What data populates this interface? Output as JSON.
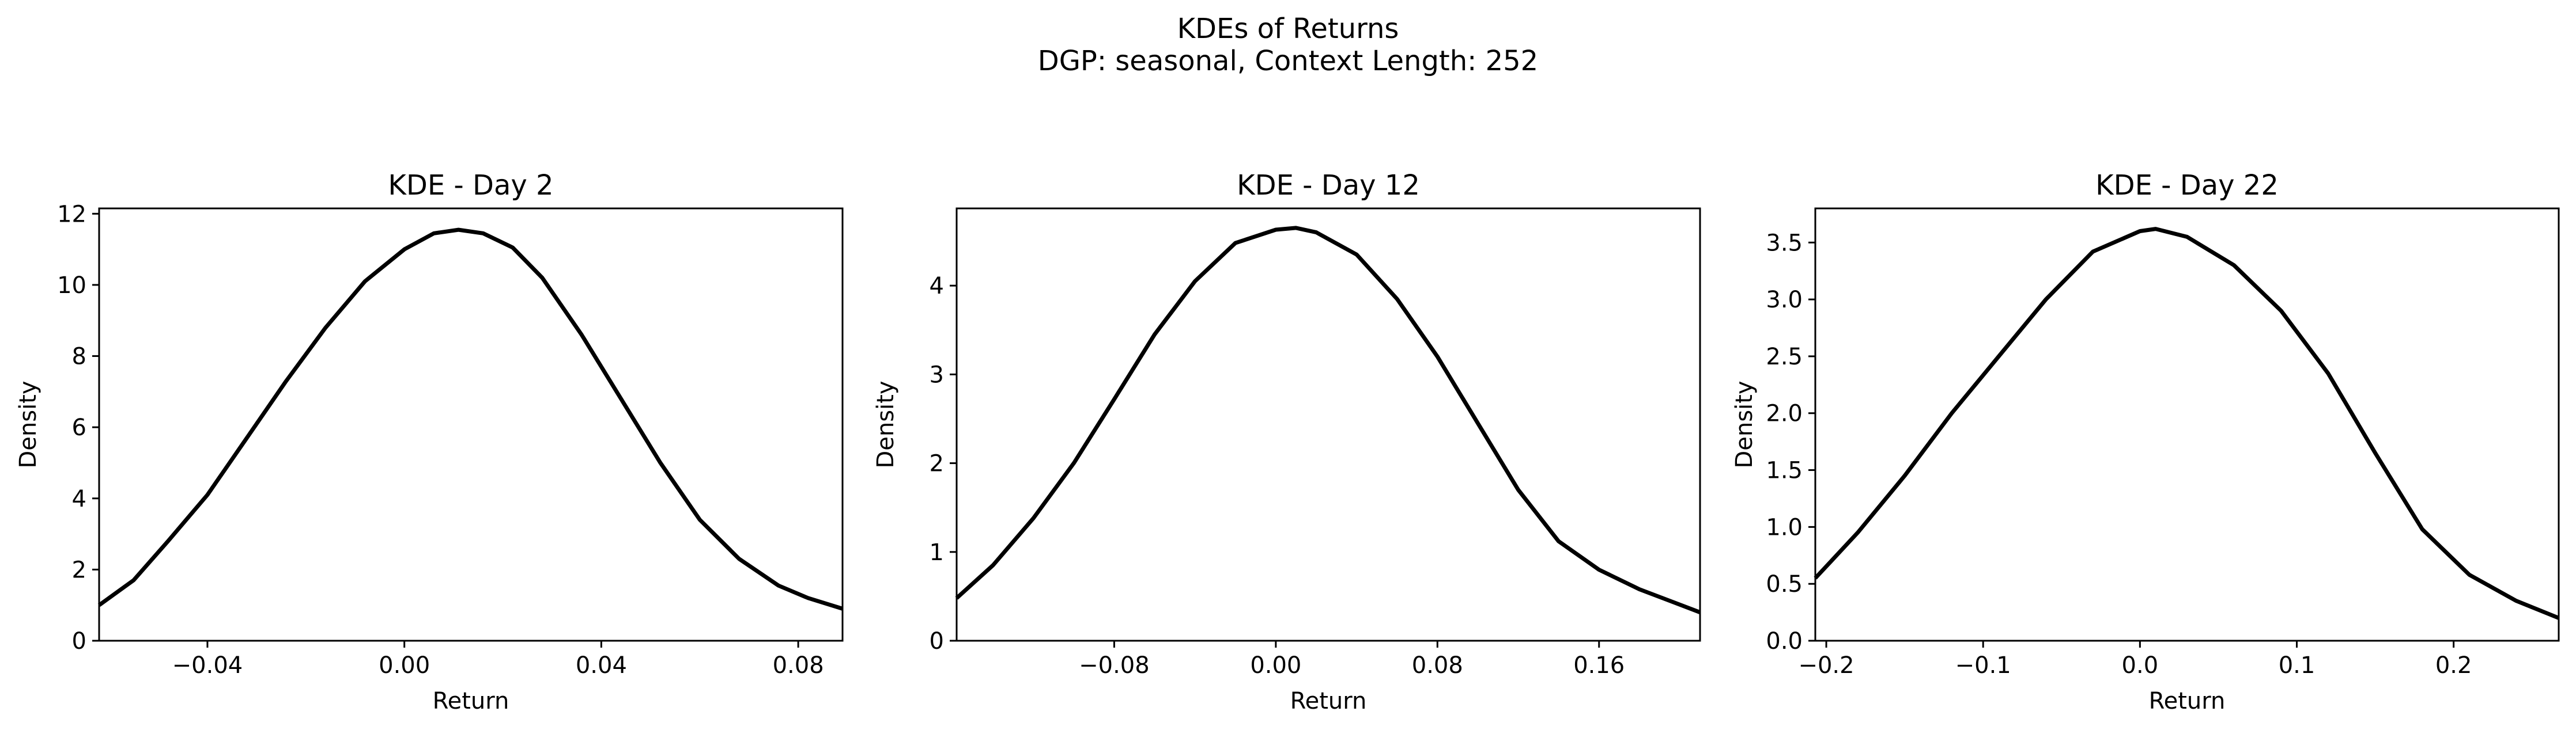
{
  "figure": {
    "title": "KDEs of Returns",
    "subtitle": "DGP: seasonal, Context Length: 252"
  },
  "colors": {
    "line": "#000000",
    "axes": "#000000",
    "background": "#ffffff"
  },
  "chart_data": [
    {
      "type": "line",
      "title": "KDE - Day 2",
      "xlabel": "Return",
      "ylabel": "Density",
      "xlim": [
        -0.062,
        0.089
      ],
      "ylim": [
        0,
        12.15
      ],
      "xticks": [
        -0.04,
        0.0,
        0.04,
        0.08
      ],
      "xtick_labels": [
        "−0.04",
        "0.00",
        "0.04",
        "0.08"
      ],
      "yticks": [
        0,
        2,
        4,
        6,
        8,
        10,
        12
      ],
      "ytick_labels": [
        "0",
        "2",
        "4",
        "6",
        "8",
        "10",
        "12"
      ],
      "grid": false,
      "legend": "none",
      "series": [
        {
          "x": [
            -0.062,
            -0.055,
            -0.048,
            -0.04,
            -0.032,
            -0.024,
            -0.016,
            -0.008,
            0.0,
            0.006,
            0.011,
            0.016,
            0.022,
            0.028,
            0.036,
            0.044,
            0.052,
            0.06,
            0.068,
            0.076,
            0.082,
            0.089
          ],
          "y": [
            1.0,
            1.7,
            2.8,
            4.1,
            5.7,
            7.3,
            8.8,
            10.1,
            11.0,
            11.45,
            11.55,
            11.45,
            11.05,
            10.2,
            8.6,
            6.8,
            5.0,
            3.4,
            2.3,
            1.55,
            1.2,
            0.9
          ]
        }
      ]
    },
    {
      "type": "line",
      "title": "KDE - Day 12",
      "xlabel": "Return",
      "ylabel": "Density",
      "xlim": [
        -0.158,
        0.21
      ],
      "ylim": [
        0,
        4.87
      ],
      "xticks": [
        -0.08,
        0.0,
        0.08,
        0.16
      ],
      "xtick_labels": [
        "−0.08",
        "0.00",
        "0.08",
        "0.16"
      ],
      "yticks": [
        0,
        1,
        2,
        3,
        4
      ],
      "ytick_labels": [
        "0",
        "1",
        "2",
        "3",
        "4"
      ],
      "grid": false,
      "legend": "none",
      "series": [
        {
          "x": [
            -0.158,
            -0.14,
            -0.12,
            -0.1,
            -0.08,
            -0.06,
            -0.04,
            -0.02,
            0.0,
            0.01,
            0.02,
            0.04,
            0.06,
            0.08,
            0.1,
            0.12,
            0.14,
            0.16,
            0.18,
            0.195,
            0.21
          ],
          "y": [
            0.48,
            0.85,
            1.38,
            2.0,
            2.72,
            3.45,
            4.05,
            4.48,
            4.63,
            4.65,
            4.6,
            4.35,
            3.85,
            3.2,
            2.45,
            1.7,
            1.12,
            0.8,
            0.58,
            0.45,
            0.32
          ]
        }
      ]
    },
    {
      "type": "line",
      "title": "KDE - Day 22",
      "xlabel": "Return",
      "ylabel": "Density",
      "xlim": [
        -0.207,
        0.267
      ],
      "ylim": [
        0,
        3.8
      ],
      "xticks": [
        -0.2,
        -0.1,
        0.0,
        0.1,
        0.2
      ],
      "xtick_labels": [
        "−0.2",
        "−0.1",
        "0.0",
        "0.1",
        "0.2"
      ],
      "yticks": [
        0.0,
        0.5,
        1.0,
        1.5,
        2.0,
        2.5,
        3.0,
        3.5
      ],
      "ytick_labels": [
        "0.0",
        "0.5",
        "1.0",
        "1.5",
        "2.0",
        "2.5",
        "3.0",
        "3.5"
      ],
      "grid": false,
      "legend": "none",
      "series": [
        {
          "x": [
            -0.207,
            -0.18,
            -0.15,
            -0.12,
            -0.09,
            -0.06,
            -0.03,
            0.0,
            0.01,
            0.03,
            0.06,
            0.09,
            0.12,
            0.15,
            0.18,
            0.21,
            0.24,
            0.267
          ],
          "y": [
            0.55,
            0.95,
            1.45,
            2.0,
            2.5,
            3.0,
            3.42,
            3.6,
            3.62,
            3.55,
            3.3,
            2.9,
            2.35,
            1.65,
            0.98,
            0.58,
            0.35,
            0.2
          ]
        }
      ]
    }
  ]
}
